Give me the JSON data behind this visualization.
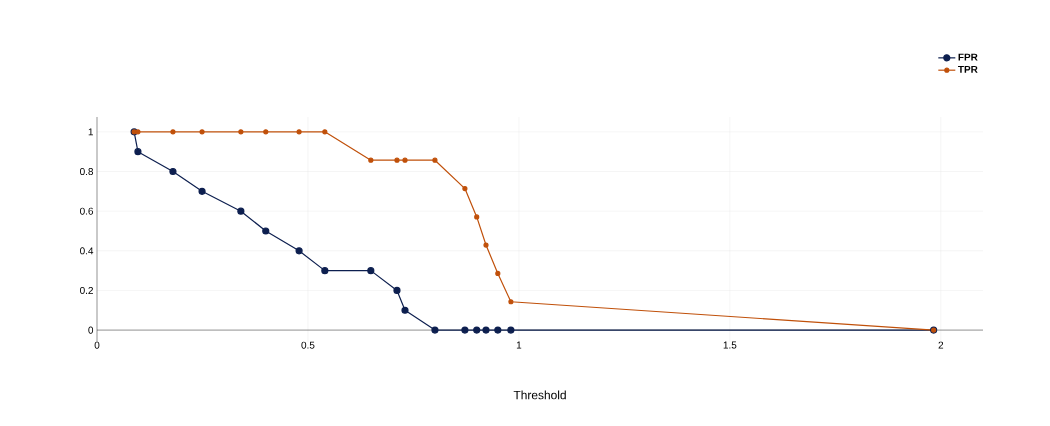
{
  "chart_data": {
    "type": "line",
    "xlabel": "Threshold",
    "xlim": [
      0,
      2.1
    ],
    "ylim": [
      -0.06,
      1.075
    ],
    "xticks": [
      0,
      0.5,
      1,
      1.5,
      2
    ],
    "yticks": [
      0,
      0.2,
      0.4,
      0.6,
      0.8,
      1
    ],
    "grid": true,
    "legend": "top right",
    "marker": "circle",
    "line_style": "solid",
    "series": [
      {
        "name": "FPR",
        "color": "#0d1f4f",
        "x": [
          0.088,
          0.097,
          0.18,
          0.249,
          0.341,
          0.4,
          0.479,
          0.54,
          0.649,
          0.711,
          0.73,
          0.801,
          0.872,
          0.9,
          0.922,
          0.95,
          0.981,
          1.983
        ],
        "values": [
          1,
          0.9,
          0.8,
          0.7,
          0.6,
          0.5,
          0.4,
          0.3,
          0.3,
          0.2,
          0.1,
          0,
          0,
          0,
          0,
          0,
          0,
          0
        ]
      },
      {
        "name": "TPR",
        "color": "#c0500a",
        "x": [
          0.088,
          0.097,
          0.18,
          0.249,
          0.341,
          0.4,
          0.479,
          0.54,
          0.649,
          0.711,
          0.73,
          0.801,
          0.872,
          0.9,
          0.922,
          0.95,
          0.981,
          1.983
        ],
        "values": [
          1,
          1,
          1,
          1,
          1,
          1,
          1,
          1,
          0.857,
          0.857,
          0.857,
          0.857,
          0.714,
          0.571,
          0.429,
          0.286,
          0.143,
          0
        ]
      }
    ]
  }
}
